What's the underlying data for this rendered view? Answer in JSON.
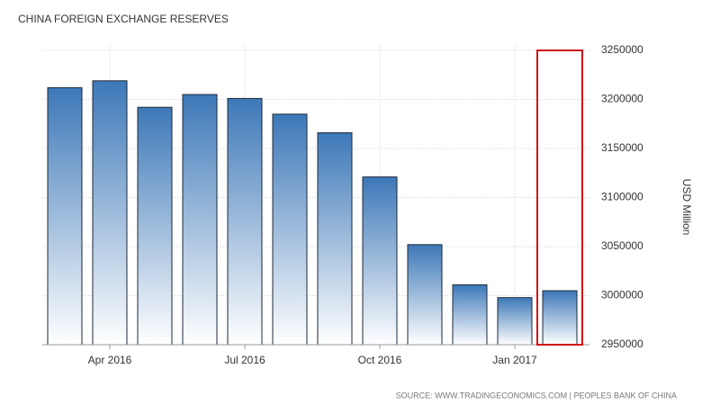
{
  "chart_data": {
    "type": "bar",
    "title": "CHINA FOREIGN EXCHANGE RESERVES",
    "y_axis_label": "USD Million",
    "source": "SOURCE: WWW.TRADINGECONOMICS.COM | PEOPLES BANK OF CHINA",
    "categories": [
      null,
      "Apr 2016",
      null,
      null,
      "Jul 2016",
      null,
      null,
      "Oct 2016",
      null,
      null,
      "Jan 2017",
      null
    ],
    "values": [
      3212000,
      3219000,
      3192000,
      3205000,
      3201000,
      3185000,
      3166000,
      3121000,
      3052000,
      3011000,
      2998000,
      3005000
    ],
    "color": "#3d78b8",
    "ylim": [
      2950000,
      3250000
    ],
    "yticks": [
      2950000,
      3000000,
      3050000,
      3100000,
      3150000,
      3200000,
      3250000
    ],
    "grid": true
  }
}
